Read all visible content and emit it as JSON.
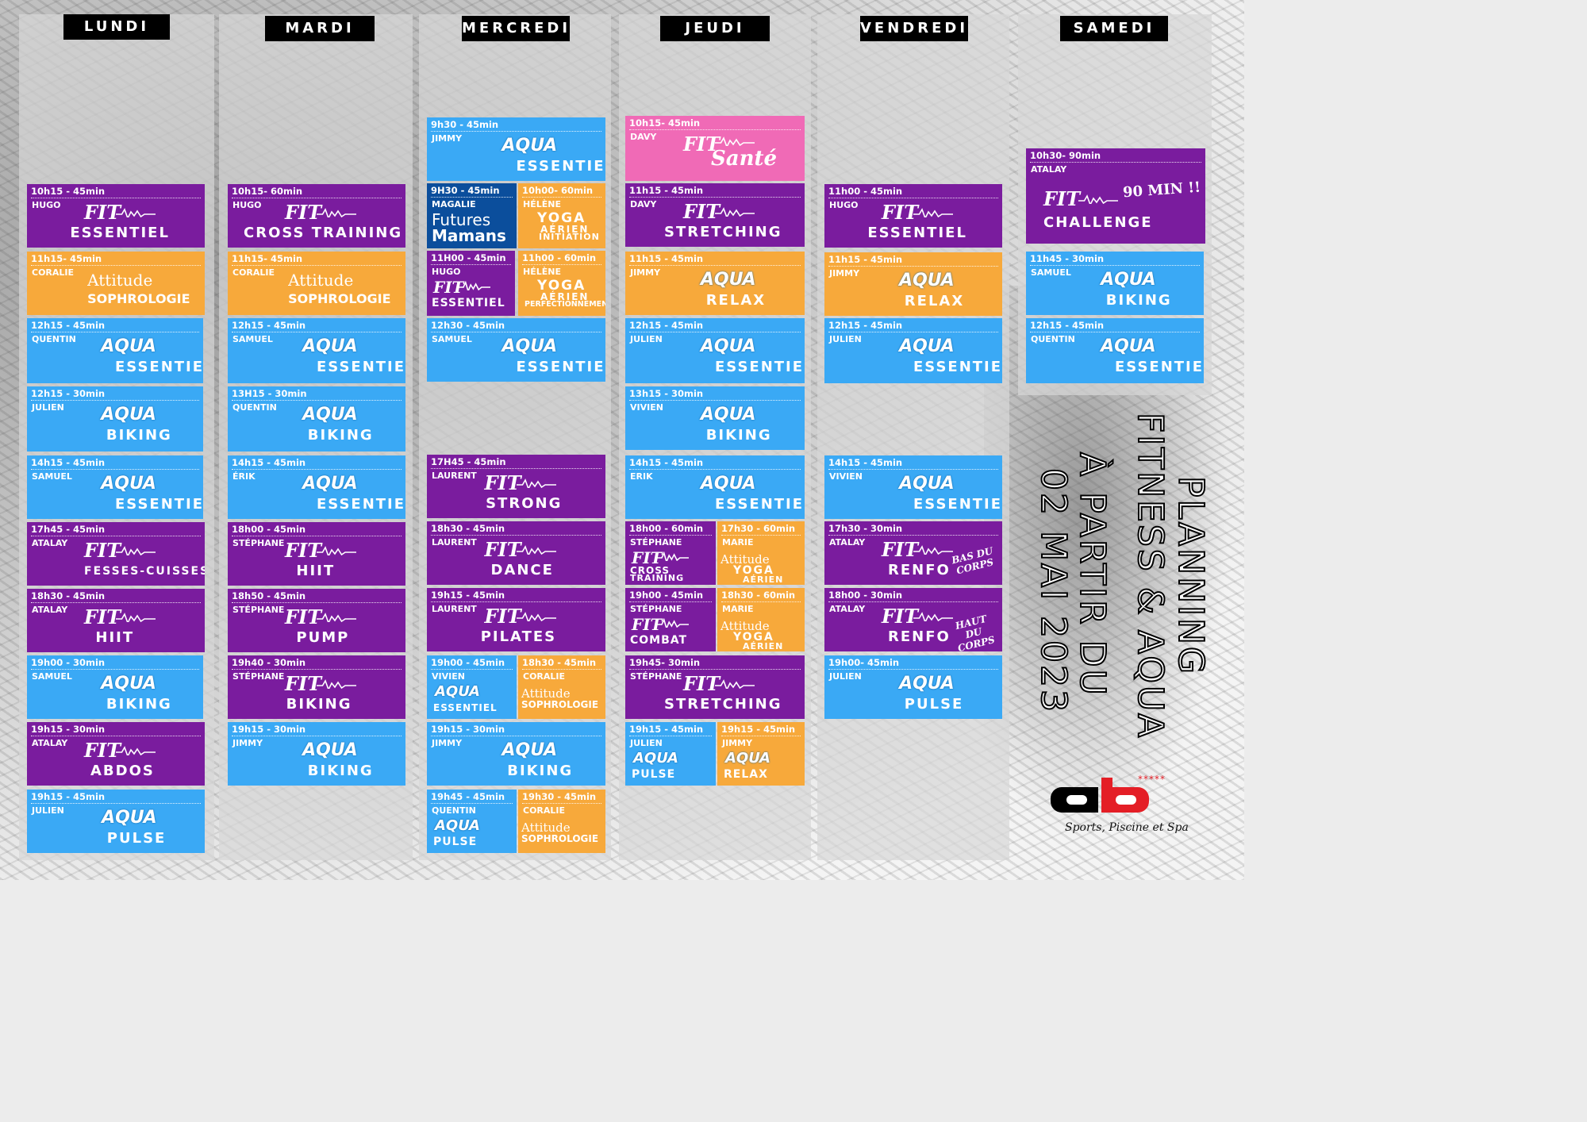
{
  "title": {
    "line1": "PLANNING",
    "line2": "FITNESS & AQUA",
    "line3": "À PARTIR DU",
    "line4": "02 MAI 2023"
  },
  "logo": {
    "brand": "ab",
    "stars": "*****",
    "tagline": "Sports, Piscine et Spa"
  },
  "colors": {
    "aqua": "#3aa9f5",
    "fit": "#7a1c9e",
    "attitude": "#f7a93b",
    "sante": "#f06ab6",
    "mamans": "#0b4e9c",
    "header": "#000000"
  },
  "days": [
    {
      "label": "LUNDI",
      "classes": [
        {
          "time": "10h15 - 45min",
          "coach": "HUGO",
          "brand": "FIT",
          "name": "ESSENTIEL",
          "color": "purple"
        },
        {
          "time": "11h15- 45min",
          "coach": "CORALIE",
          "brand": "Attitude",
          "name": "SOPHROLOGIE",
          "color": "orange"
        },
        {
          "time": "12h15 - 45min",
          "coach": "QUENTIN",
          "brand": "AQUA",
          "name": "ESSENTIEL",
          "color": "blue"
        },
        {
          "time": "12h15 - 30min",
          "coach": "JULIEN",
          "brand": "AQUA",
          "name": "BIKING",
          "color": "blue"
        },
        {
          "time": "14h15 - 45min",
          "coach": "SAMUEL",
          "brand": "AQUA",
          "name": "ESSENTIEL",
          "color": "blue"
        },
        {
          "time": "17h45 - 45min",
          "coach": "ATALAY",
          "brand": "FIT",
          "name": "FESSES-CUISSES",
          "color": "purple"
        },
        {
          "time": "18h30 - 45min",
          "coach": "ATALAY",
          "brand": "FIT",
          "name": "HIIT",
          "color": "purple"
        },
        {
          "time": "19h00 - 30min",
          "coach": "SAMUEL",
          "brand": "AQUA",
          "name": "BIKING",
          "color": "blue"
        },
        {
          "time": "19h15 - 30min",
          "coach": "ATALAY",
          "brand": "FIT",
          "name": "ABDOS",
          "color": "purple"
        },
        {
          "time": "19h15 - 45min",
          "coach": "JULIEN",
          "brand": "AQUA",
          "name": "PULSE",
          "color": "blue"
        }
      ]
    },
    {
      "label": "MARDI",
      "classes": [
        {
          "time": "10h15- 60min",
          "coach": "HUGO",
          "brand": "FIT",
          "name": "CROSS TRAINING",
          "color": "purple"
        },
        {
          "time": "11h15- 45min",
          "coach": "CORALIE",
          "brand": "Attitude",
          "name": "SOPHROLOGIE",
          "color": "orange"
        },
        {
          "time": "12h15 - 45min",
          "coach": "SAMUEL",
          "brand": "AQUA",
          "name": "ESSENTIEL",
          "color": "blue"
        },
        {
          "time": "13H15 - 30min",
          "coach": "QUENTIN",
          "brand": "AQUA",
          "name": "BIKING",
          "color": "blue"
        },
        {
          "time": "14h15 - 45min",
          "coach": "ÉRIK",
          "brand": "AQUA",
          "name": "ESSENTIEL",
          "color": "blue"
        },
        {
          "time": "18h00 - 45min",
          "coach": "STÉPHANE",
          "brand": "FIT",
          "name": "HIIT",
          "color": "purple"
        },
        {
          "time": "18h50 - 45min",
          "coach": "STÉPHANE",
          "brand": "FIT",
          "name": "PUMP",
          "color": "purple"
        },
        {
          "time": "19h40 - 30min",
          "coach": "STÉPHANE",
          "brand": "FIT",
          "name": "BIKING",
          "color": "purple"
        },
        {
          "time": "19h15 - 30min",
          "coach": "JIMMY",
          "brand": "AQUA",
          "name": "BIKING",
          "color": "blue"
        }
      ]
    },
    {
      "label": "MERCREDI",
      "classes": [
        {
          "time": "9h30 - 45min",
          "coach": "JIMMY",
          "brand": "AQUA",
          "name": "ESSENTIEL",
          "color": "blue"
        },
        {
          "time": "9H30 - 45min",
          "coach": "MAGALIE",
          "brand": "Futures",
          "name": "Mamans",
          "color": "navy"
        },
        {
          "time": "10h00- 60min",
          "coach": "HÉLÈNE",
          "brand": "YOGA",
          "name": "AÉRIEN",
          "sub": "INITIATION",
          "color": "orange"
        },
        {
          "time": "11H00 - 45min",
          "coach": "HUGO",
          "brand": "FIT",
          "name": "ESSENTIEL",
          "color": "purple"
        },
        {
          "time": "11h00 - 60min",
          "coach": "HÉLÈNE",
          "brand": "YOGA",
          "name": "AÉRIEN",
          "sub": "PERFECTIONNEMENT",
          "color": "orange"
        },
        {
          "time": "12h30 - 45min",
          "coach": "SAMUEL",
          "brand": "AQUA",
          "name": "ESSENTIEL",
          "color": "blue"
        },
        {
          "time": "17H45 - 45min",
          "coach": "LAURENT",
          "brand": "FIT",
          "name": "STRONG",
          "color": "purple"
        },
        {
          "time": "18h30 - 45min",
          "coach": "LAURENT",
          "brand": "FIT",
          "name": "DANCE",
          "color": "purple"
        },
        {
          "time": "19h15 - 45min",
          "coach": "LAURENT",
          "brand": "FIT",
          "name": "PILATES",
          "color": "purple"
        },
        {
          "time": "19h00 - 45min",
          "coach": "VIVIEN",
          "brand": "AQUA",
          "name": "ESSENTIEL",
          "color": "blue"
        },
        {
          "time": "18h30 - 45min",
          "coach": "CORALIE",
          "brand": "Attitude",
          "name": "SOPHROLOGIE",
          "color": "orange"
        },
        {
          "time": "19h15 - 30min",
          "coach": "JIMMY",
          "brand": "AQUA",
          "name": "BIKING",
          "color": "blue"
        },
        {
          "time": "19h45 - 45min",
          "coach": "QUENTIN",
          "brand": "AQUA",
          "name": "PULSE",
          "color": "blue"
        },
        {
          "time": "19h30 - 45min",
          "coach": "CORALIE",
          "brand": "Attitude",
          "name": "SOPHROLOGIE",
          "color": "orange"
        }
      ]
    },
    {
      "label": "JEUDI",
      "classes": [
        {
          "time": "10h15- 45min",
          "coach": "DAVY",
          "brand": "FIT",
          "name": "Santé",
          "color": "pink"
        },
        {
          "time": "11h15 - 45min",
          "coach": "DAVY",
          "brand": "FIT",
          "name": "STRETCHING",
          "color": "purple"
        },
        {
          "time": "11h15 - 45min",
          "coach": "JIMMY",
          "brand": "AQUA",
          "name": "RELAX",
          "color": "orange"
        },
        {
          "time": "12h15 - 45min",
          "coach": "JULIEN",
          "brand": "AQUA",
          "name": "ESSENTIEL",
          "color": "blue"
        },
        {
          "time": "13h15 - 30min",
          "coach": "VIVIEN",
          "brand": "AQUA",
          "name": "BIKING",
          "color": "blue"
        },
        {
          "time": "14h15 - 45min",
          "coach": "ERIK",
          "brand": "AQUA",
          "name": "ESSENTIEL",
          "color": "blue"
        },
        {
          "time": "18h00 - 60min",
          "coach": "STÉPHANE",
          "brand": "FIT",
          "name": "CROSS",
          "sub": "TRAINING",
          "color": "purple"
        },
        {
          "time": "17h30 - 60min",
          "coach": "MARIE",
          "brand": "Attitude",
          "name": "YOGA",
          "sub": "AÉRIEN",
          "color": "orange"
        },
        {
          "time": "19h00 - 45min",
          "coach": "STÉPHANE",
          "brand": "FIT",
          "name": "COMBAT",
          "color": "purple"
        },
        {
          "time": "18h30 - 60min",
          "coach": "MARIE",
          "brand": "Attitude",
          "name": "YOGA",
          "sub": "AÉRIEN",
          "color": "orange"
        },
        {
          "time": "19h45- 30min",
          "coach": "STÉPHANE",
          "brand": "FIT",
          "name": "STRETCHING",
          "color": "purple"
        },
        {
          "time": "19h15 - 45min",
          "coach": "JULIEN",
          "brand": "AQUA",
          "name": "PULSE",
          "color": "blue"
        },
        {
          "time": "19h15 - 45min",
          "coach": "JIMMY",
          "brand": "AQUA",
          "name": "RELAX",
          "color": "orange"
        }
      ]
    },
    {
      "label": "VENDREDI",
      "classes": [
        {
          "time": "11h00 - 45min",
          "coach": "HUGO",
          "brand": "FIT",
          "name": "ESSENTIEL",
          "color": "purple"
        },
        {
          "time": "11h15 - 45min",
          "coach": "JIMMY",
          "brand": "AQUA",
          "name": "RELAX",
          "color": "orange"
        },
        {
          "time": "12h15 - 45min",
          "coach": "JULIEN",
          "brand": "AQUA",
          "name": "ESSENTIEL",
          "color": "blue"
        },
        {
          "time": "14h15 - 45min",
          "coach": "VIVIEN",
          "brand": "AQUA",
          "name": "ESSENTIEL",
          "color": "blue"
        },
        {
          "time": "17h30 - 30min",
          "coach": "ATALAY",
          "brand": "FIT",
          "name": "RENFO",
          "note": "BAS DU CORPS",
          "color": "purple"
        },
        {
          "time": "18h00 - 30min",
          "coach": "ATALAY",
          "brand": "FIT",
          "name": "RENFO",
          "note": "HAUT DU CORPS",
          "color": "purple"
        },
        {
          "time": "19h00- 45min",
          "coach": "JULIEN",
          "brand": "AQUA",
          "name": "PULSE",
          "color": "blue"
        }
      ]
    },
    {
      "label": "SAMEDI",
      "classes": [
        {
          "time": "10h30- 90min",
          "coach": "ATALAY",
          "brand": "FIT",
          "name": "CHALLENGE",
          "note": "90 MIN !!",
          "color": "purple"
        },
        {
          "time": "11h45 - 30min",
          "coach": "SAMUEL",
          "brand": "AQUA",
          "name": "BIKING",
          "color": "blue"
        },
        {
          "time": "12h15 - 45min",
          "coach": "QUENTIN",
          "brand": "AQUA",
          "name": "ESSENTIEL",
          "color": "blue"
        }
      ]
    }
  ]
}
